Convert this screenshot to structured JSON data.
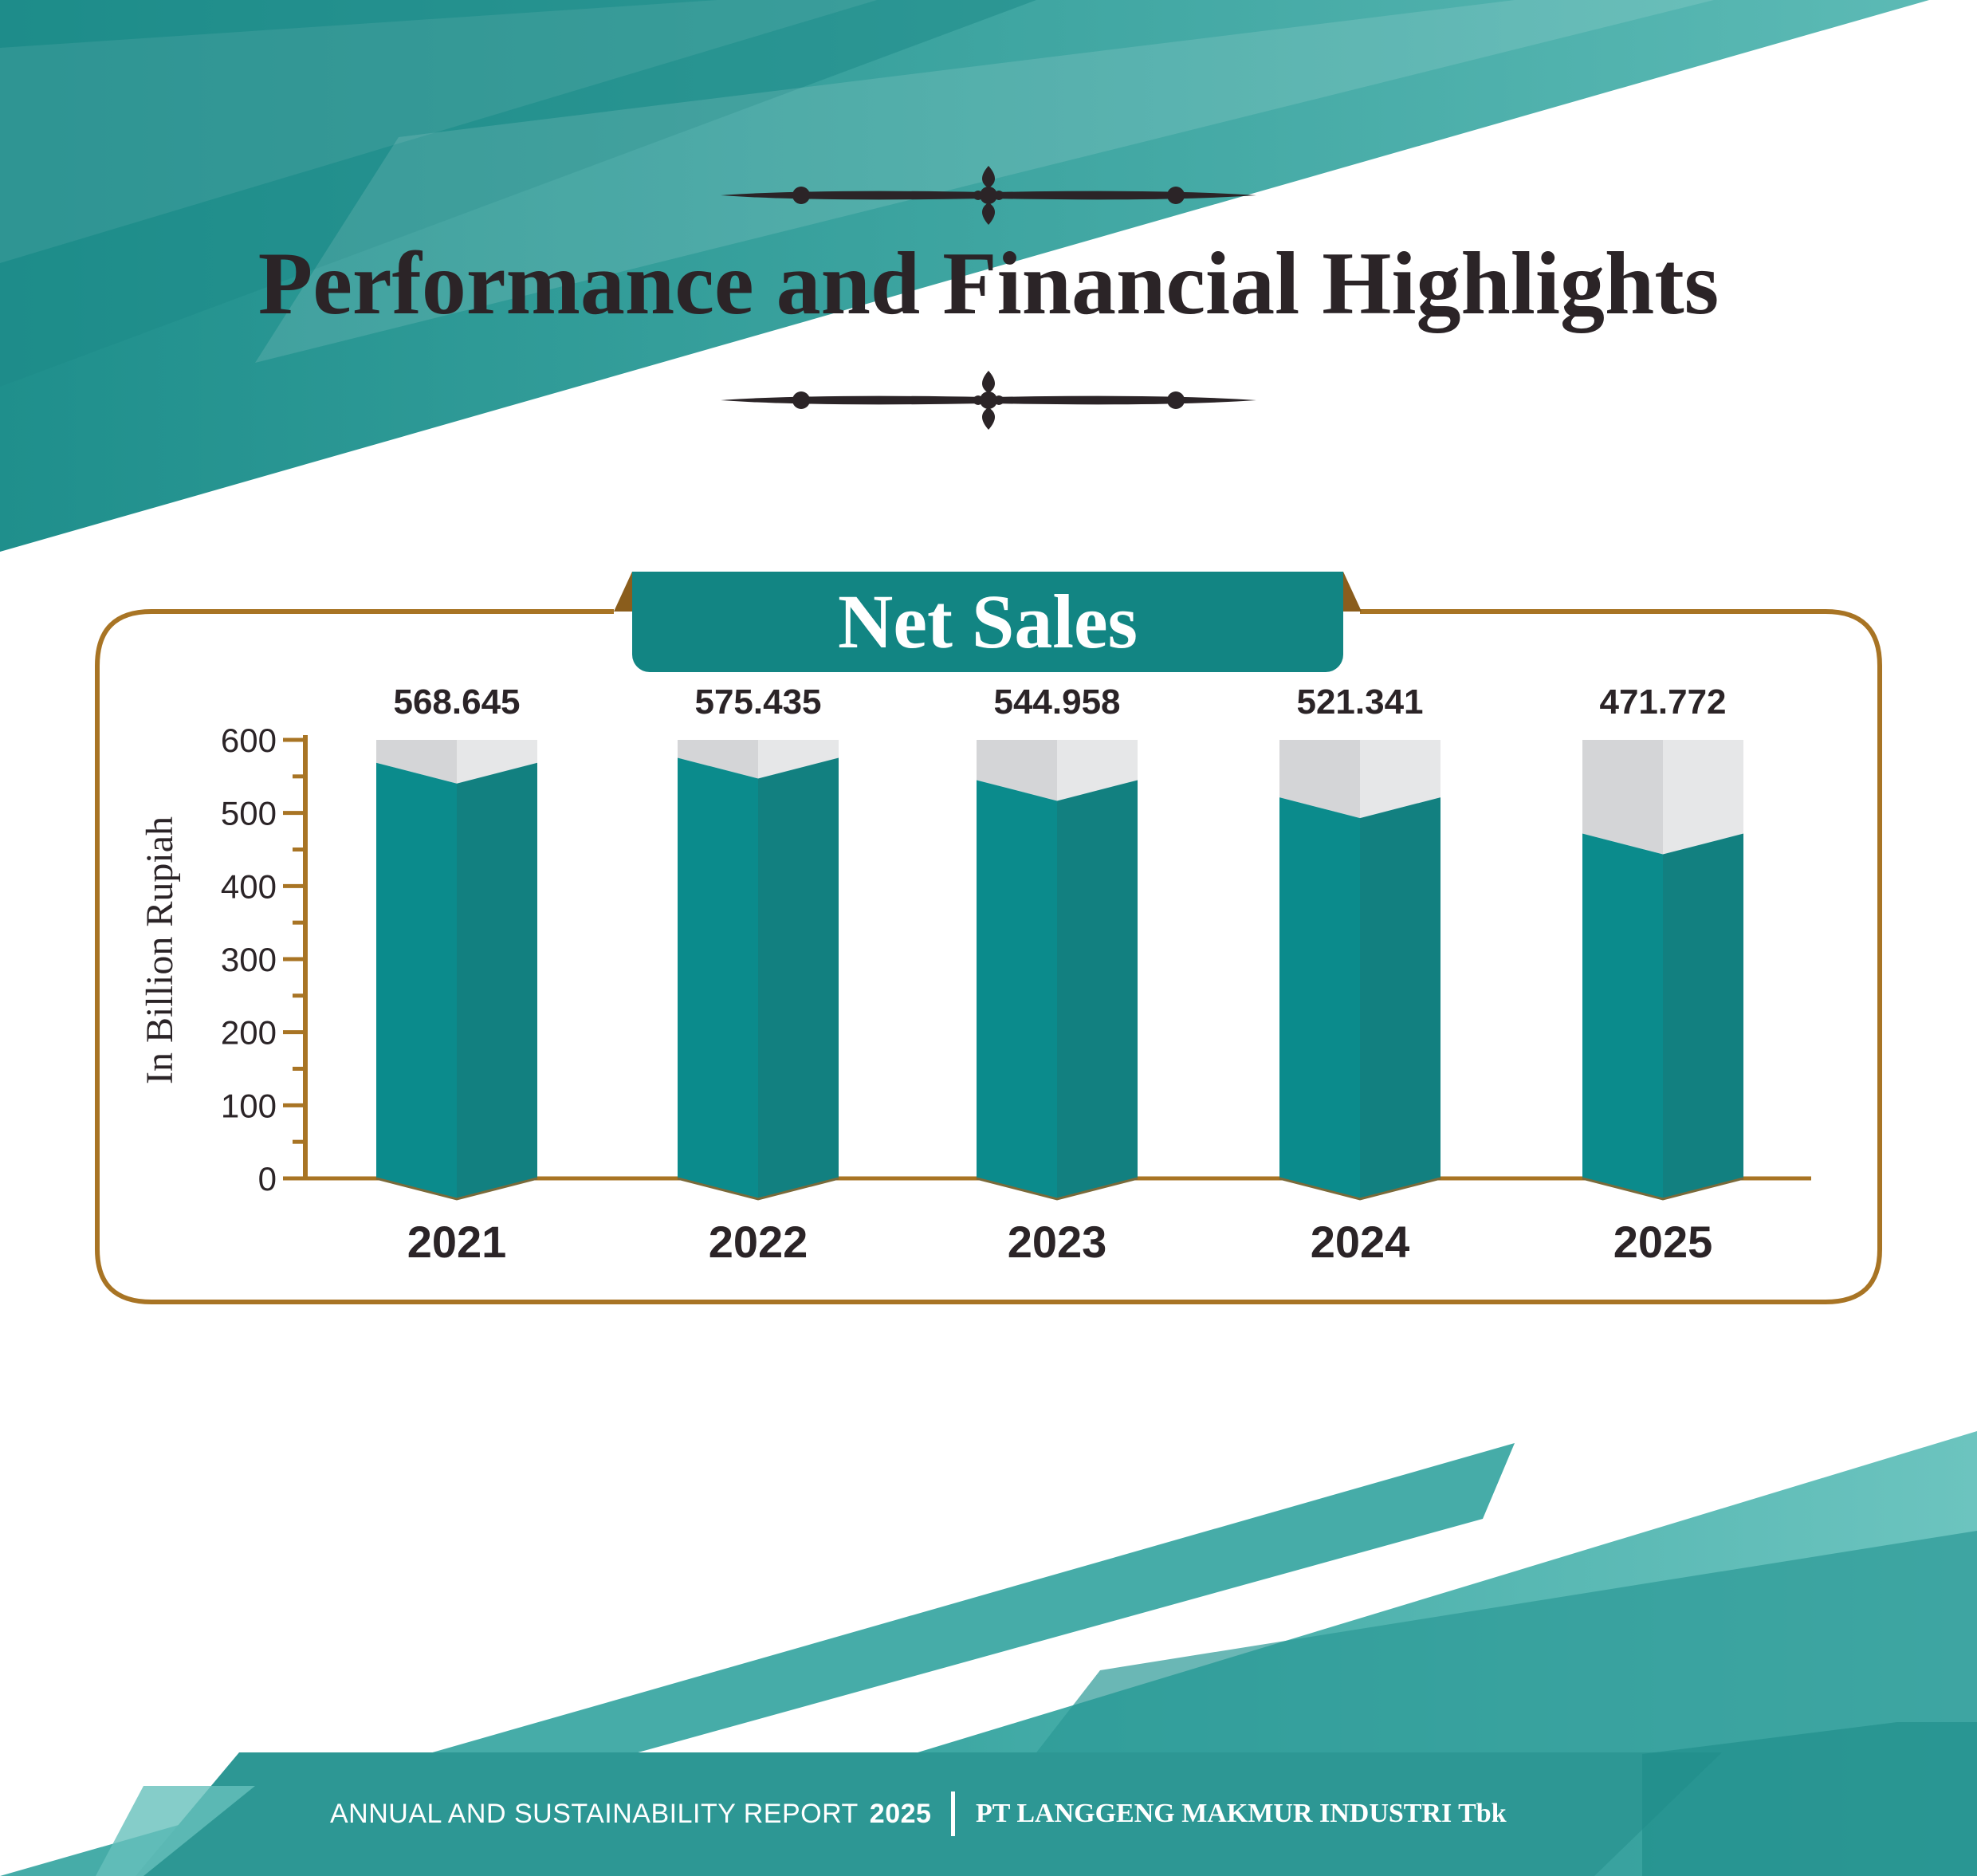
{
  "page": {
    "title": "Performance and Financial Highlights"
  },
  "footer": {
    "report_label": "ANNUAL AND SUSTAINABILITY REPORT",
    "report_year": "2025",
    "company": "PT LANGGENG MAKMUR INDUSTRI Tbk"
  },
  "colors": {
    "teal": "#0b8b8c",
    "teal_dark": "#128080",
    "gold": "#a87424",
    "grey_light": "#e6e7e8",
    "grey_dark": "#d4d5d7",
    "text_dark": "#2b2427"
  },
  "chart_data": {
    "type": "bar",
    "title": "Net Sales",
    "ylabel": "In Billion Rupiah",
    "xlabel": "",
    "categories": [
      "2021",
      "2022",
      "2023",
      "2024",
      "2025"
    ],
    "values": [
      568.645,
      575.435,
      544.958,
      521.341,
      471.772
    ],
    "value_labels": [
      "568.645",
      "575.435",
      "544.958",
      "521.341",
      "471.772"
    ],
    "ylim": [
      0,
      600
    ],
    "yticks": [
      "0",
      "100",
      "200",
      "300",
      "400",
      "500",
      "600"
    ],
    "grid": false,
    "legend": "none"
  }
}
